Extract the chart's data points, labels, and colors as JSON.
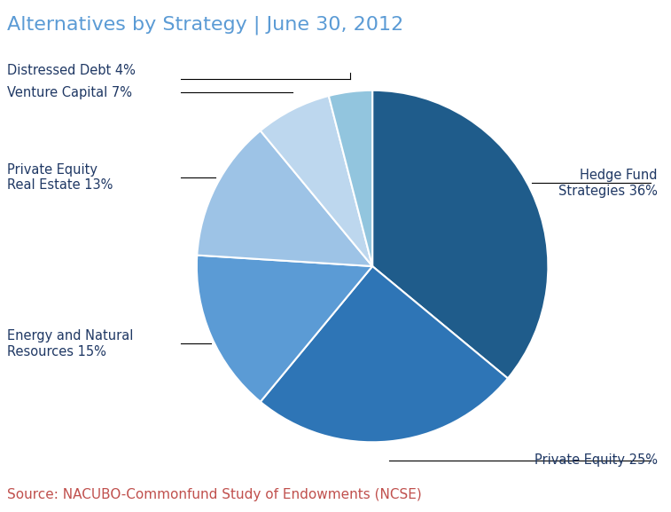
{
  "title": "Alternatives by Strategy | June 30, 2012",
  "title_color": "#5b9bd5",
  "source_text": "Source: NACUBO-Commonfund Study of Endowments (NCSE)",
  "source_color": "#c0504d",
  "slices": [
    {
      "label": "Hedge Fund\nStrategies 36%",
      "value": 36,
      "color": "#1f5c8b"
    },
    {
      "label": "Private Equity 25%",
      "value": 25,
      "color": "#2e75b6"
    },
    {
      "label": "Energy and Natural\nResources 15%",
      "value": 15,
      "color": "#5b9bd5"
    },
    {
      "label": "Private Equity\nReal Estate 13%",
      "value": 13,
      "color": "#9dc3e6"
    },
    {
      "label": "Venture Capital 7%",
      "value": 7,
      "color": "#bdd7ee"
    },
    {
      "label": "Distressed Debt 4%",
      "value": 4,
      "color": "#92c5de"
    }
  ],
  "wedge_edge_color": "white",
  "wedge_edge_width": 1.5,
  "startangle": 90,
  "label_fontsize": 10.5,
  "label_color": "#1f3864",
  "title_fontsize": 16,
  "source_fontsize": 11,
  "figsize": [
    7.57,
    5.77
  ],
  "dpi": 100
}
